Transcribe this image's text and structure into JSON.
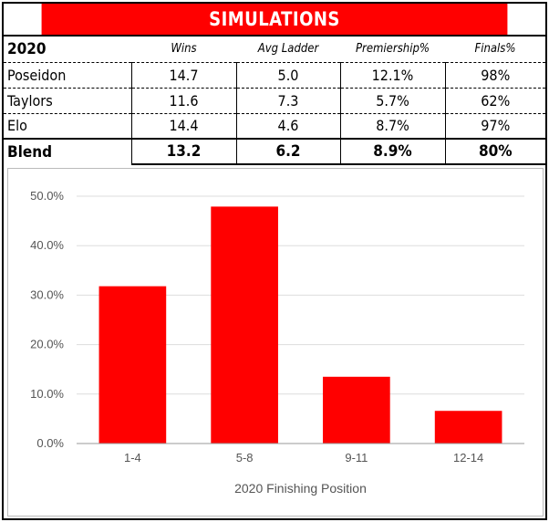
{
  "title": "SIMULATIONS",
  "table": {
    "year": "2020",
    "columns": [
      "Wins",
      "Avg Ladder",
      "Premiership%",
      "Finals%"
    ],
    "rows": [
      {
        "name": "Poseidon",
        "wins": "14.7",
        "avg_ladder": "5.0",
        "premiership": "12.1%",
        "finals": "98%"
      },
      {
        "name": "Taylors",
        "wins": "11.6",
        "avg_ladder": "7.3",
        "premiership": "5.7%",
        "finals": "62%"
      },
      {
        "name": "Elo",
        "wins": "14.4",
        "avg_ladder": "4.6",
        "premiership": "8.7%",
        "finals": "97%"
      }
    ],
    "blend": {
      "name": "Blend",
      "wins": "13.2",
      "avg_ladder": "6.2",
      "premiership": "8.9%",
      "finals": "80%"
    }
  },
  "colors": {
    "accent": "#ff0000",
    "grid": "#dddddd",
    "axis": "#999999",
    "text": "#555555"
  },
  "chart_data": {
    "type": "bar",
    "categories": [
      "1-4",
      "5-8",
      "9-11",
      "12-14"
    ],
    "values": [
      31.8,
      47.9,
      13.5,
      6.6
    ],
    "xlabel": "2020 Finishing Position",
    "ylabel": "",
    "ylim": [
      0,
      50
    ],
    "yticks": [
      0,
      10,
      20,
      30,
      40,
      50
    ],
    "ytick_labels": [
      "0.0%",
      "10.0%",
      "20.0%",
      "30.0%",
      "40.0%",
      "50.0%"
    ],
    "grid": true,
    "legend": "none"
  }
}
